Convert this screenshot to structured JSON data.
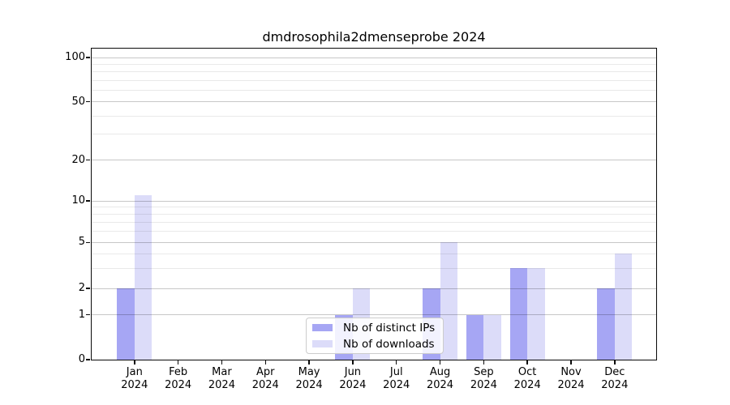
{
  "title": "dmdrosophila2dmenseprobe 2024",
  "colors": {
    "ips": "#a6a6f4",
    "downloads": "#dcdcf9",
    "grid_major": "rgba(0,0,0,0.22)",
    "grid_minor": "rgba(0,0,0,0.085)",
    "spine": "#0a0a0a",
    "text": "#000000",
    "legend_border": "#cccccc"
  },
  "legend": {
    "items": [
      {
        "label": "Nb of distinct IPs",
        "key": "ips"
      },
      {
        "label": "Nb of downloads",
        "key": "downloads"
      }
    ]
  },
  "x_axis": {
    "months": [
      {
        "month": "Jan",
        "year": "2024"
      },
      {
        "month": "Feb",
        "year": "2024"
      },
      {
        "month": "Mar",
        "year": "2024"
      },
      {
        "month": "Apr",
        "year": "2024"
      },
      {
        "month": "May",
        "year": "2024"
      },
      {
        "month": "Jun",
        "year": "2024"
      },
      {
        "month": "Jul",
        "year": "2024"
      },
      {
        "month": "Aug",
        "year": "2024"
      },
      {
        "month": "Sep",
        "year": "2024"
      },
      {
        "month": "Oct",
        "year": "2024"
      },
      {
        "month": "Nov",
        "year": "2024"
      },
      {
        "month": "Dec",
        "year": "2024"
      }
    ]
  },
  "y_axis": {
    "ticks": [
      0,
      1,
      2,
      5,
      10,
      20,
      50,
      100
    ],
    "minor_ticks": [
      3,
      4,
      6,
      7,
      8,
      9,
      30,
      40,
      60,
      70,
      80,
      90
    ]
  },
  "chart_data": {
    "type": "bar",
    "title": "dmdrosophila2dmenseprobe 2024",
    "categories": [
      "Jan 2024",
      "Feb 2024",
      "Mar 2024",
      "Apr 2024",
      "May 2024",
      "Jun 2024",
      "Jul 2024",
      "Aug 2024",
      "Sep 2024",
      "Oct 2024",
      "Nov 2024",
      "Dec 2024"
    ],
    "series": [
      {
        "name": "Nb of distinct IPs",
        "values": [
          2,
          0,
          0,
          0,
          0,
          1,
          0,
          2,
          1,
          3,
          0,
          2
        ]
      },
      {
        "name": "Nb of downloads",
        "values": [
          11,
          0,
          0,
          0,
          0,
          2,
          0,
          5,
          1,
          3,
          0,
          4
        ]
      }
    ],
    "yscale": "symlog",
    "yticks": [
      0,
      1,
      2,
      5,
      10,
      20,
      50,
      100
    ],
    "ylim": [
      0,
      120
    ],
    "grid": true,
    "legend_position": "lower center"
  }
}
